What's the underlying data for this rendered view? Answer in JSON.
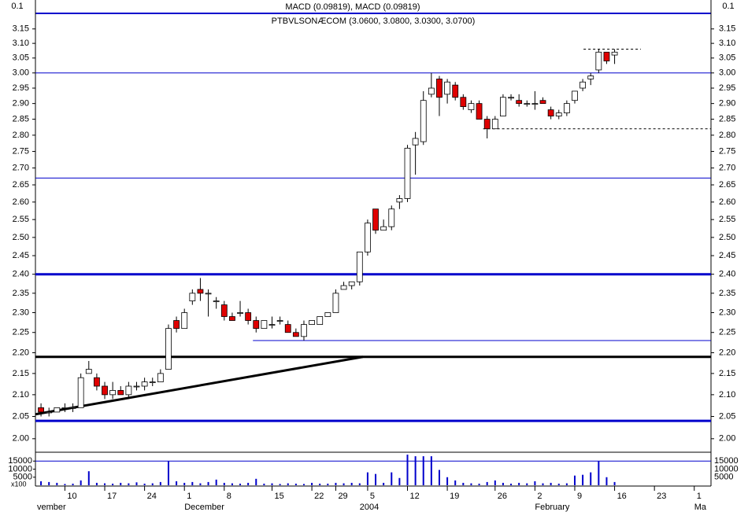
{
  "chart_data": {
    "type": "candlestick",
    "title": "PTBVLSONÆCOM (3.0600, 3.0800, 3.0300, 3.0700)",
    "indicator_label": "MACD (0.09819), MACD (0.09819)",
    "indicator_tick": 0.1,
    "log_scale": true,
    "xlim": [
      -0.7,
      84.1
    ],
    "ylim": [
      1.972,
      3.202
    ],
    "yticks": [
      {
        "value": 2,
        "label": "2.00"
      },
      2.05,
      {
        "value": 2.1,
        "label": "2.10"
      },
      2.15,
      {
        "value": 2.2,
        "label": "2.20"
      },
      2.25,
      {
        "value": 2.3,
        "label": "2.30"
      },
      2.35,
      {
        "value": 2.4,
        "label": "2.40"
      },
      2.45,
      {
        "value": 2.5,
        "label": "2.50"
      },
      2.55,
      {
        "value": 2.6,
        "label": "2.60"
      },
      2.65,
      {
        "value": 2.7,
        "label": "2.70"
      },
      2.75,
      {
        "value": 2.8,
        "label": "2.80"
      },
      2.85,
      {
        "value": 2.9,
        "label": "2.90"
      },
      2.95,
      {
        "value": 3,
        "label": "3.00"
      },
      3.05,
      {
        "value": 3.1,
        "label": "3.10"
      },
      3.15
    ],
    "xticks": [
      {
        "value": 3,
        "label": "10"
      },
      {
        "value": 8,
        "label": "17"
      },
      {
        "value": 13,
        "label": "24"
      },
      {
        "value": 18,
        "label": "1"
      },
      {
        "value": 23,
        "label": "8"
      },
      {
        "value": 29,
        "label": "15"
      },
      {
        "value": 34,
        "label": "22"
      },
      {
        "value": 37,
        "label": "29"
      },
      {
        "value": 41,
        "label": "5"
      },
      {
        "value": 46,
        "label": "12"
      },
      {
        "value": 51,
        "label": "19"
      },
      {
        "value": 57,
        "label": "26"
      },
      {
        "value": 62,
        "label": "2"
      },
      {
        "value": 67,
        "label": "9"
      },
      {
        "value": 72,
        "label": "16"
      },
      {
        "value": 77,
        "label": "23"
      },
      {
        "value": 82,
        "label": "1"
      }
    ],
    "month_labels": [
      {
        "value": -0.5,
        "label": "vember"
      },
      {
        "value": 18,
        "label": "December"
      },
      {
        "value": 40,
        "label": "2004"
      },
      {
        "value": 62,
        "label": "February"
      },
      {
        "value": 82,
        "label": "Ma"
      }
    ],
    "up_color": "#ffffff",
    "down_color": "#e00000",
    "open": [
      2.07,
      2.06,
      2.06,
      2.07,
      2.07,
      2.07,
      2.15,
      2.14,
      2.12,
      2.1,
      2.11,
      2.1,
      2.12,
      2.12,
      2.13,
      2.13,
      2.16,
      2.28,
      2.26,
      2.33,
      2.36,
      2.35,
      2.33,
      2.32,
      2.29,
      2.3,
      2.3,
      2.28,
      2.26,
      2.27,
      2.28,
      2.27,
      2.25,
      2.24,
      2.27,
      2.27,
      2.29,
      2.3,
      2.36,
      2.37,
      2.38,
      2.46,
      2.58,
      2.52,
      2.53,
      2.6,
      2.61,
      2.77,
      2.78,
      2.93,
      2.98,
      2.93,
      2.96,
      2.92,
      2.88,
      2.9,
      2.85,
      2.82,
      2.86,
      2.92,
      2.91,
      2.9,
      2.9,
      2.91,
      2.88,
      2.86,
      2.87,
      2.91,
      2.95,
      2.98,
      3.01,
      3.07,
      3.06
    ],
    "high": [
      2.08,
      2.07,
      2.07,
      2.08,
      2.08,
      2.15,
      2.18,
      2.15,
      2.13,
      2.13,
      2.12,
      2.13,
      2.13,
      2.14,
      2.14,
      2.16,
      2.27,
      2.29,
      2.31,
      2.36,
      2.39,
      2.36,
      2.34,
      2.33,
      2.3,
      2.33,
      2.31,
      2.29,
      2.28,
      2.29,
      2.29,
      2.28,
      2.26,
      2.28,
      2.28,
      2.29,
      2.3,
      2.36,
      2.38,
      2.38,
      2.46,
      2.55,
      2.58,
      2.55,
      2.59,
      2.62,
      2.77,
      2.81,
      2.94,
      3.0,
      2.99,
      2.98,
      2.97,
      2.93,
      2.91,
      2.91,
      2.86,
      2.86,
      2.93,
      2.93,
      2.93,
      2.91,
      2.94,
      2.92,
      2.89,
      2.88,
      2.91,
      2.94,
      2.98,
      3.0,
      3.08,
      3.07,
      3.08
    ],
    "low": [
      2.05,
      2.05,
      2.06,
      2.06,
      2.06,
      2.07,
      2.15,
      2.11,
      2.09,
      2.09,
      2.1,
      2.09,
      2.11,
      2.11,
      2.12,
      2.13,
      2.16,
      2.25,
      2.26,
      2.32,
      2.33,
      2.29,
      2.31,
      2.28,
      2.28,
      2.29,
      2.27,
      2.25,
      2.26,
      2.26,
      2.27,
      2.25,
      2.24,
      2.23,
      2.27,
      2.27,
      2.29,
      2.3,
      2.36,
      2.36,
      2.37,
      2.45,
      2.51,
      2.52,
      2.52,
      2.58,
      2.6,
      2.68,
      2.77,
      2.92,
      2.86,
      2.9,
      2.91,
      2.88,
      2.87,
      2.85,
      2.79,
      2.82,
      2.86,
      2.91,
      2.89,
      2.89,
      2.88,
      2.9,
      2.85,
      2.85,
      2.86,
      2.9,
      2.94,
      2.96,
      3.0,
      3.03,
      3.03
    ],
    "close": [
      2.06,
      2.06,
      2.07,
      2.07,
      2.07,
      2.14,
      2.16,
      2.12,
      2.1,
      2.11,
      2.1,
      2.12,
      2.12,
      2.13,
      2.13,
      2.15,
      2.26,
      2.26,
      2.3,
      2.35,
      2.35,
      2.35,
      2.33,
      2.29,
      2.28,
      2.3,
      2.28,
      2.26,
      2.28,
      2.27,
      2.28,
      2.25,
      2.24,
      2.27,
      2.28,
      2.29,
      2.3,
      2.35,
      2.37,
      2.38,
      2.46,
      2.54,
      2.52,
      2.53,
      2.58,
      2.61,
      2.76,
      2.79,
      2.91,
      2.95,
      2.92,
      2.97,
      2.92,
      2.89,
      2.9,
      2.85,
      2.82,
      2.85,
      2.92,
      2.92,
      2.9,
      2.9,
      2.9,
      2.9,
      2.86,
      2.87,
      2.9,
      2.94,
      2.97,
      2.99,
      3.07,
      3.04,
      3.07
    ],
    "volume": {
      "color": "#0000cc",
      "ylim": [
        0,
        20000
      ],
      "yticks": [
        5000,
        10000,
        15000
      ],
      "unit_label": "x100",
      "values": [
        2500,
        2000,
        1500,
        800,
        1000,
        3000,
        8700,
        1500,
        1200,
        1000,
        1500,
        1200,
        1800,
        1000,
        1200,
        2000,
        15000,
        2500,
        1500,
        2000,
        1200,
        2000,
        3500,
        1500,
        1200,
        1000,
        1500,
        4000,
        1000,
        1200,
        800,
        1200,
        1000,
        800,
        1500,
        1000,
        1000,
        1500,
        1200,
        1500,
        1200,
        8000,
        7000,
        1500,
        8000,
        4500,
        19000,
        18000,
        18000,
        18000,
        9500,
        5000,
        3000,
        1500,
        1200,
        1000,
        2000,
        3000,
        1500,
        1000,
        1500,
        1200,
        2500,
        1200,
        1500,
        1000,
        1200,
        6000,
        6500,
        8000,
        15000,
        5000,
        2000
      ]
    },
    "hlines": [
      {
        "value": 3.0,
        "x": [
          -0.7,
          84.1
        ],
        "color": "#0000cc",
        "width": 1,
        "dashed": false
      },
      {
        "value": 2.67,
        "x": [
          -0.7,
          84.1
        ],
        "color": "#0000cc",
        "width": 1,
        "dashed": false
      },
      {
        "value": 2.4,
        "x": [
          -0.7,
          84.1
        ],
        "color": "#0000cc",
        "width": 3,
        "dashed": false
      },
      {
        "value": 2.23,
        "x": [
          26.6,
          84.1
        ],
        "color": "#0000cc",
        "width": 1,
        "dashed": false
      },
      {
        "value": 2.19,
        "x": [
          -0.7,
          84.1
        ],
        "color": "#000000",
        "width": 3,
        "dashed": false
      },
      {
        "value": 2.04,
        "x": [
          -0.7,
          84.1
        ],
        "color": "#0000cc",
        "width": 3,
        "dashed": false
      },
      {
        "value": 2.82,
        "x": [
          55.5,
          84.1
        ],
        "color": "#000000",
        "width": 1,
        "dashed": true
      },
      {
        "value": 3.08,
        "x": [
          68.1,
          75.3
        ],
        "color": "#000000",
        "width": 1,
        "dashed": true
      }
    ],
    "trendline": {
      "x": [
        -0.7,
        40.4
      ],
      "y": [
        2.055,
        2.19
      ],
      "color": "#000000"
    }
  }
}
